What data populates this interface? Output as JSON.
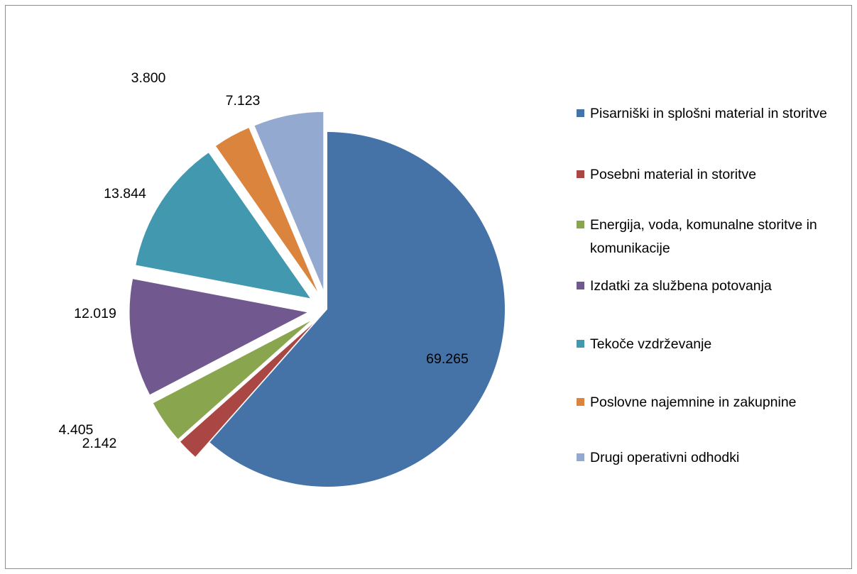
{
  "chart_data": {
    "type": "pie",
    "title": "",
    "categories": [
      "Pisarniški in splošni material in storitve",
      "Posebni material in storitve",
      "Energija, voda, komunalne storitve in komunikacije",
      "Izdatki za službena potovanja",
      "Tekoče vzdrževanje",
      "Poslovne najemnine in zakupnine",
      "Drugi operativni odhodki"
    ],
    "values": [
      69.265,
      2.142,
      4.405,
      12.019,
      13.844,
      3.8,
      7.123
    ],
    "value_labels": [
      "69.265",
      "2.142",
      "4.405",
      "12.019",
      "13.844",
      "3.800",
      "7.123"
    ],
    "colors": [
      "#4572A7",
      "#AA4643",
      "#89A54E",
      "#71588F",
      "#4198AF",
      "#DB843D",
      "#93A9CF"
    ],
    "legend_position": "right",
    "exploded": true
  }
}
